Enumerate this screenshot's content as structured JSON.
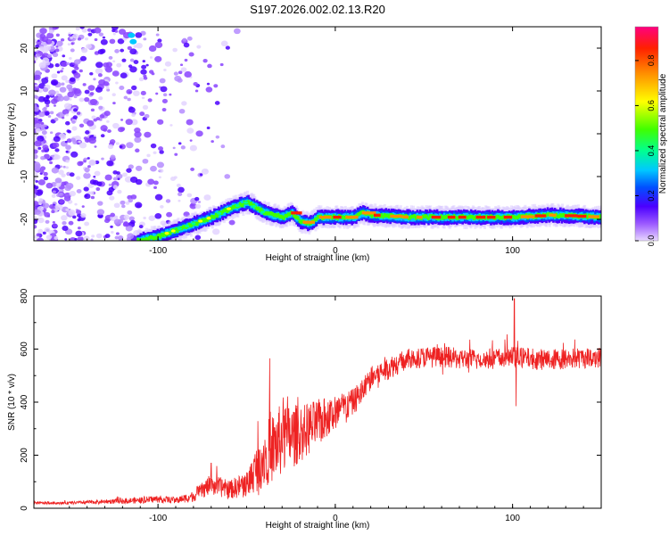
{
  "figure": {
    "title": "S197.2026.002.02.13.R20"
  },
  "chart_data": [
    {
      "type": "heatmap",
      "title": "S197.2026.002.02.13.R20",
      "xlabel": "Height of straight line (km)",
      "ylabel": "Frequency (Hz)",
      "xlim": [
        -170,
        150
      ],
      "ylim": [
        -25,
        25
      ],
      "x_ticks": [
        -100,
        0,
        100
      ],
      "x_tick_labels": [
        "-100",
        "0",
        "100"
      ],
      "y_ticks": [
        -20,
        -10,
        0,
        10,
        20
      ],
      "y_tick_labels": [
        "-20",
        "-10",
        "0",
        "10",
        "20"
      ],
      "colorbar": {
        "label": "Normalized spectral amplitude",
        "range": [
          0,
          0.95
        ],
        "ticks": [
          0,
          0.2,
          0.4,
          0.6,
          0.8
        ],
        "tick_labels": [
          "0.0",
          "0.2",
          "0.4",
          "0.6",
          "0.8"
        ],
        "colormap": [
          "#e8d8ff",
          "#9b59ff",
          "#4b00ff",
          "#0050ff",
          "#00c8ff",
          "#00ff90",
          "#40ff00",
          "#ffff00",
          "#ff9000",
          "#ff2000",
          "#ff0080"
        ]
      },
      "ridge": {
        "description": "dominant frequency track",
        "x": [
          -112,
          -100,
          -90,
          -80,
          -70,
          -60,
          -50,
          -40,
          -30,
          -25,
          -20,
          -15,
          -10,
          0,
          10,
          15,
          20,
          40,
          60,
          80,
          100,
          120,
          150
        ],
        "freq": [
          -25,
          -24,
          -22.5,
          -21,
          -19.5,
          -17.5,
          -16,
          -18.5,
          -19.5,
          -18.5,
          -20.5,
          -21,
          -19.5,
          -19.5,
          -19.5,
          -18.5,
          -19,
          -19.5,
          -19.5,
          -19.5,
          -19.5,
          -19,
          -19.5
        ]
      },
      "noise_region": {
        "x_range": [
          -170,
          -55
        ],
        "freq_range": [
          -25,
          25
        ]
      }
    },
    {
      "type": "line",
      "xlabel": "Height of straight line (km)",
      "ylabel": "SNR (10 * v/v)",
      "xlim": [
        -170,
        150
      ],
      "ylim": [
        0,
        800
      ],
      "x_ticks": [
        -100,
        0,
        100
      ],
      "x_tick_labels": [
        "-100",
        "0",
        "100"
      ],
      "y_ticks": [
        0,
        200,
        400,
        600,
        800
      ],
      "y_tick_labels": [
        "0",
        "200",
        "400",
        "600",
        "800"
      ],
      "series": [
        {
          "name": "SNR",
          "color": "#ee2222",
          "x": [
            -170,
            -150,
            -130,
            -110,
            -100,
            -90,
            -80,
            -70,
            -60,
            -50,
            -40,
            -30,
            -20,
            -10,
            0,
            10,
            15,
            20,
            30,
            40,
            50,
            60,
            80,
            100,
            120,
            150
          ],
          "values": [
            20,
            20,
            25,
            30,
            35,
            30,
            45,
            90,
            70,
            90,
            200,
            260,
            280,
            320,
            360,
            400,
            440,
            490,
            530,
            560,
            570,
            570,
            560,
            570,
            560,
            570
          ],
          "noise": [
            5,
            5,
            8,
            12,
            14,
            12,
            20,
            40,
            35,
            50,
            120,
            140,
            110,
            90,
            70,
            50,
            50,
            45,
            45,
            40,
            40,
            40,
            40,
            40,
            40,
            40
          ]
        }
      ],
      "annotations": [
        {
          "x": 101,
          "value": 790,
          "label": "spike"
        },
        {
          "x": 102,
          "value": 385,
          "label": "dip"
        },
        {
          "x": -37,
          "value": 565,
          "label": "spike"
        },
        {
          "x": -70,
          "value": 170,
          "label": "spike"
        }
      ]
    }
  ]
}
